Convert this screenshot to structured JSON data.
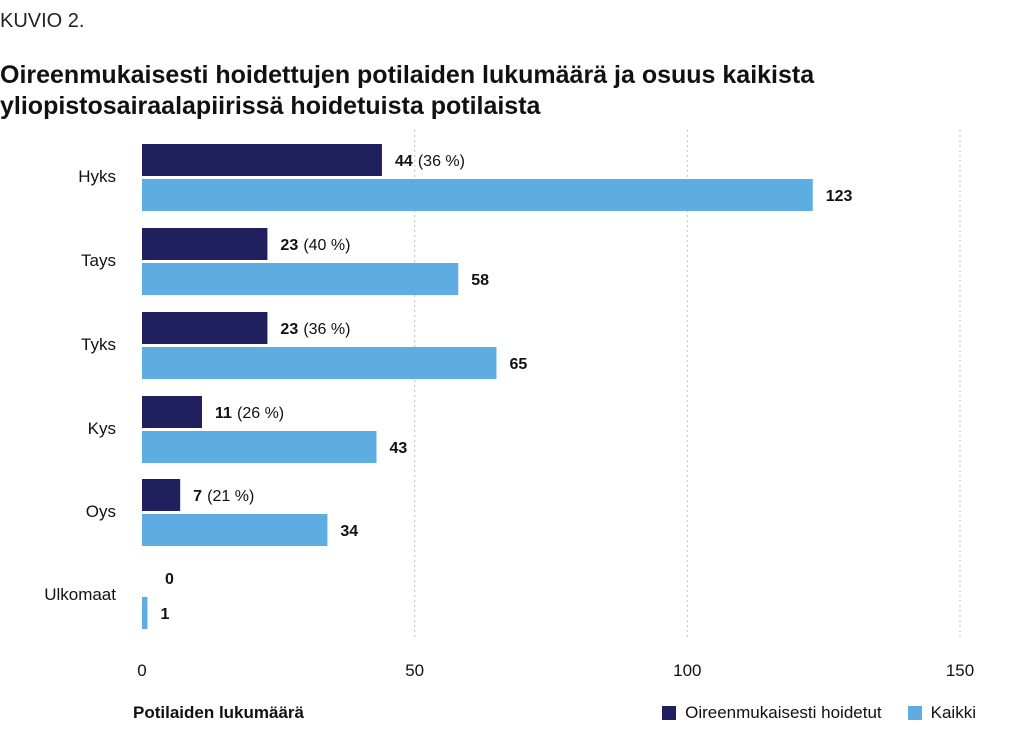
{
  "figure_label": "KUVIO 2.",
  "colors": {
    "treated": "#21205f",
    "all": "#5dade2",
    "grid": "#c8c8c8"
  },
  "chart_data": {
    "type": "bar",
    "orientation": "horizontal",
    "title": "Oireenmukaisesti hoidettujen potilaiden lukumäärä ja osuus kaikista yliopistosairaalapiirissä hoidetuista potilaista",
    "xlabel": "Potilaiden lukumäärä",
    "xlim": [
      0,
      150
    ],
    "xticks": [
      0,
      50,
      100,
      150
    ],
    "grid": "vertical dotted",
    "legend_position": "bottom-right",
    "categories": [
      "Hyks",
      "Tays",
      "Tyks",
      "Kys",
      "Oys",
      "Ulkomaat"
    ],
    "series": [
      {
        "name": "Oireenmukaisesti hoidetut",
        "values": [
          44,
          23,
          23,
          11,
          7,
          0
        ],
        "labels": [
          "44",
          "23",
          "23",
          "11",
          "7",
          "0"
        ],
        "percent_labels": [
          "(36 %)",
          "(40 %)",
          "(36 %)",
          "(26 %)",
          "(21 %)",
          ""
        ]
      },
      {
        "name": "Kaikki",
        "values": [
          123,
          58,
          65,
          43,
          34,
          1
        ],
        "labels": [
          "123",
          "58",
          "65",
          "43",
          "34",
          "1"
        ]
      }
    ]
  }
}
